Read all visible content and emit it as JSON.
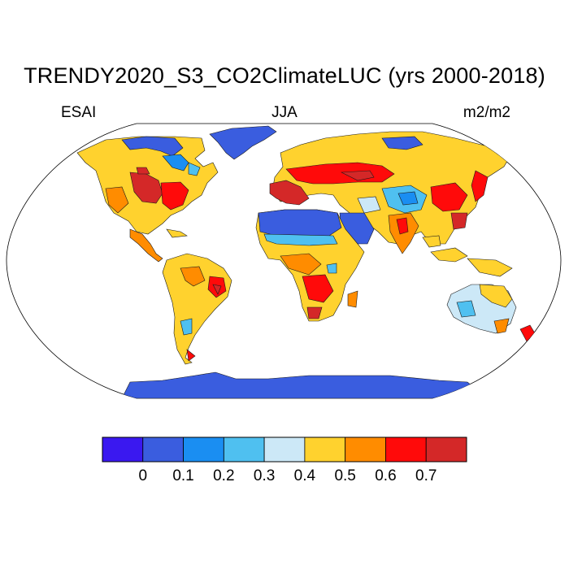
{
  "title": "TRENDY2020_S3_CO2ClimateLUC (yrs 2000-2018)",
  "left_label": "ESAI",
  "center_label": "JJA",
  "right_label": "m2/m2",
  "colorbar": {
    "colors": [
      "#3a18f0",
      "#3a5ddf",
      "#1a8ef2",
      "#4fc0f0",
      "#cce8f7",
      "#ffd22e",
      "#ff8c00",
      "#ff0a0a",
      "#d42828"
    ],
    "ticks": [
      "0",
      "0.1",
      "0.2",
      "0.3",
      "0.4",
      "0.5",
      "0.6",
      "0.7"
    ]
  },
  "colors": {
    "ocean": "#ffffff",
    "outline": "#000000",
    "coast": "#1a1a1a"
  }
}
